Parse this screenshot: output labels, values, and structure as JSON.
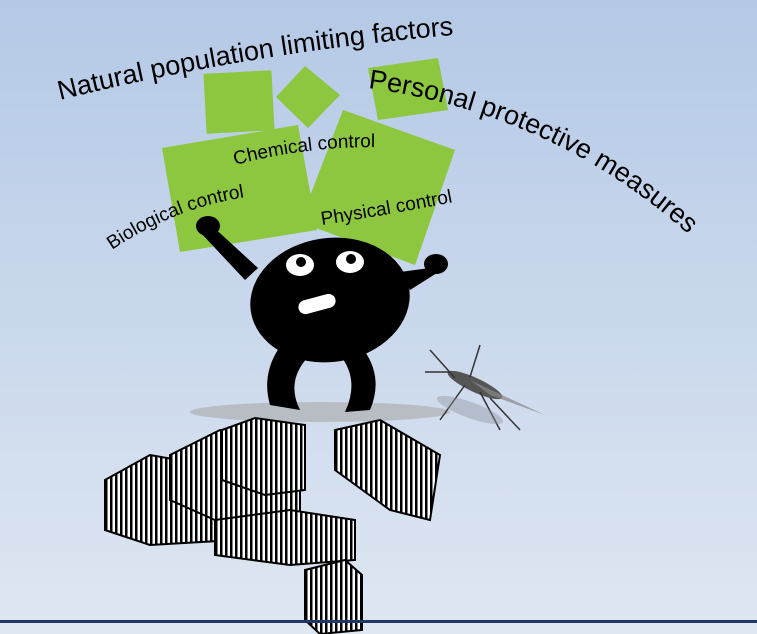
{
  "slide": {
    "labels": [
      "Natural population limiting factors",
      "Personal protective measures",
      "Chemical control",
      "Biological control",
      "Physical control"
    ]
  }
}
